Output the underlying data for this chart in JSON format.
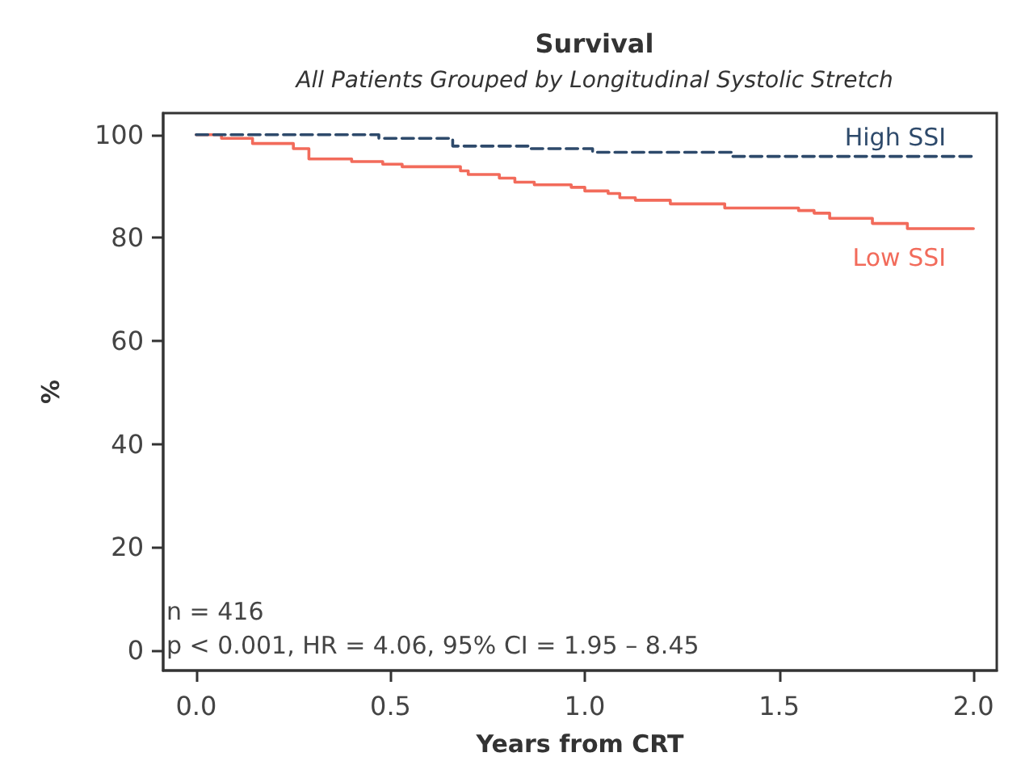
{
  "chart_data": {
    "type": "step",
    "title": "Survival",
    "subtitle": "All Patients Grouped by Longitudinal Systolic Stretch",
    "xlabel": "Years from CRT",
    "ylabel": "%",
    "xlim": [
      -0.085,
      2.06
    ],
    "xticks": [
      {
        "value": 0,
        "label": "0.0"
      },
      {
        "value": 0.5,
        "label": "0.5"
      },
      {
        "value": 1,
        "label": "1.0"
      },
      {
        "value": 1.5,
        "label": "1.5"
      },
      {
        "value": 2,
        "label": "2.0"
      }
    ],
    "ylim": [
      -3.9,
      104.2
    ],
    "yticks": [
      0,
      20,
      40,
      60,
      80,
      100
    ],
    "grid": false,
    "legend": false,
    "marker": "none",
    "annotations": [
      "n = 416",
      "p < 0.001, HR = 4.06, 95% CI = 1.95 – 8.45"
    ],
    "series": [
      {
        "name": "High SSI",
        "color": "#2e4a6b",
        "line_style": "dashed",
        "x": [
          0,
          0.47,
          0.66,
          0.86,
          1.02,
          1.38,
          2.0
        ],
        "values": [
          100,
          99.3,
          97.8,
          97.3,
          96.6,
          95.8,
          95.8
        ]
      },
      {
        "name": "Low SSI",
        "color": "#f26b5b",
        "line_style": "solid",
        "x": [
          0,
          0.065,
          0.145,
          0.25,
          0.29,
          0.4,
          0.48,
          0.53,
          0.68,
          0.7,
          0.78,
          0.82,
          0.87,
          0.965,
          1.0,
          1.06,
          1.09,
          1.13,
          1.22,
          1.36,
          1.55,
          1.59,
          1.63,
          1.74,
          1.83,
          2.0
        ],
        "values": [
          100,
          99.3,
          98.3,
          97.3,
          95.3,
          94.8,
          94.3,
          93.8,
          93.0,
          92.3,
          91.6,
          90.8,
          90.3,
          89.8,
          89.1,
          88.6,
          87.8,
          87.3,
          86.6,
          85.8,
          85.3,
          84.8,
          83.8,
          82.8,
          81.8,
          81.8
        ]
      }
    ]
  }
}
